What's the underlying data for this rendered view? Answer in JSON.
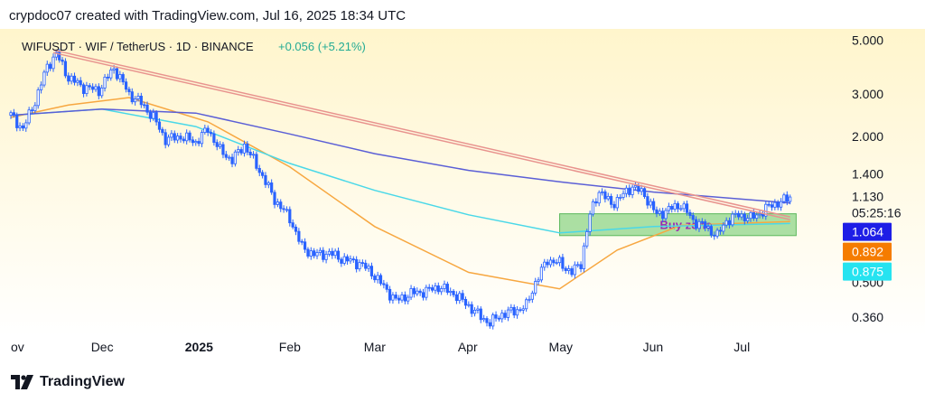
{
  "header": {
    "text": "crypdoc07 created with TradingView.com, Jul 16, 2025 18:34 UTC"
  },
  "footer": {
    "brand": "TradingView"
  },
  "chart_data": {
    "type": "candlestick",
    "symbol": "WIFUSDT · WIF / TetherUS · 1D · BINANCE",
    "change": "+0.056 (+5.21%)",
    "y_scale": "log",
    "ylim": [
      0.3,
      5.2
    ],
    "y_ticks": [
      "5.000",
      "3.000",
      "2.000",
      "1.400",
      "0.500",
      "0.360"
    ],
    "x_ticks": [
      "ov",
      "Dec",
      "2025",
      "Feb",
      "Mar",
      "Apr",
      "May",
      "Jun",
      "Jul"
    ],
    "x_dates": [
      "2024-11-01",
      "2024-12-01",
      "2025-01-01",
      "2025-02-01",
      "2025-03-01",
      "2025-04-01",
      "2025-05-01",
      "2025-06-01",
      "2025-07-01"
    ],
    "x_range": [
      "2024-11-01",
      "2025-07-31"
    ],
    "price_path": [
      [
        "2024-11-01",
        2.45
      ],
      [
        "2024-11-05",
        2.15
      ],
      [
        "2024-11-09",
        2.8
      ],
      [
        "2024-11-13",
        3.9
      ],
      [
        "2024-11-16",
        4.4
      ],
      [
        "2024-11-20",
        3.5
      ],
      [
        "2024-11-25",
        3.2
      ],
      [
        "2024-11-30",
        3.1
      ],
      [
        "2024-12-05",
        3.85
      ],
      [
        "2024-12-10",
        3.0
      ],
      [
        "2024-12-14",
        2.75
      ],
      [
        "2024-12-18",
        2.4
      ],
      [
        "2024-12-22",
        1.95
      ],
      [
        "2024-12-27",
        2.0
      ],
      [
        "2025-01-01",
        1.9
      ],
      [
        "2025-01-05",
        2.15
      ],
      [
        "2025-01-09",
        1.75
      ],
      [
        "2025-01-13",
        1.6
      ],
      [
        "2025-01-17",
        1.85
      ],
      [
        "2025-01-22",
        1.45
      ],
      [
        "2025-01-27",
        1.1
      ],
      [
        "2025-02-01",
        0.92
      ],
      [
        "2025-02-05",
        0.7
      ],
      [
        "2025-02-09",
        0.65
      ],
      [
        "2025-02-14",
        0.66
      ],
      [
        "2025-02-19",
        0.62
      ],
      [
        "2025-02-24",
        0.6
      ],
      [
        "2025-02-28",
        0.55
      ],
      [
        "2025-03-04",
        0.48
      ],
      [
        "2025-03-08",
        0.42
      ],
      [
        "2025-03-13",
        0.45
      ],
      [
        "2025-03-18",
        0.46
      ],
      [
        "2025-03-22",
        0.48
      ],
      [
        "2025-03-27",
        0.45
      ],
      [
        "2025-04-01",
        0.4
      ],
      [
        "2025-04-05",
        0.36
      ],
      [
        "2025-04-08",
        0.34
      ],
      [
        "2025-04-12",
        0.37
      ],
      [
        "2025-04-16",
        0.38
      ],
      [
        "2025-04-20",
        0.4
      ],
      [
        "2025-04-23",
        0.5
      ],
      [
        "2025-04-27",
        0.62
      ],
      [
        "2025-05-01",
        0.6
      ],
      [
        "2025-05-05",
        0.55
      ],
      [
        "2025-05-08",
        0.6
      ],
      [
        "2025-05-11",
        0.95
      ],
      [
        "2025-05-14",
        1.2
      ],
      [
        "2025-05-18",
        1.05
      ],
      [
        "2025-05-22",
        1.15
      ],
      [
        "2025-05-25",
        1.25
      ],
      [
        "2025-05-29",
        1.15
      ],
      [
        "2025-06-02",
        0.95
      ],
      [
        "2025-06-06",
        1.0
      ],
      [
        "2025-06-10",
        1.05
      ],
      [
        "2025-06-14",
        0.9
      ],
      [
        "2025-06-18",
        0.85
      ],
      [
        "2025-06-22",
        0.78
      ],
      [
        "2025-06-25",
        0.9
      ],
      [
        "2025-06-29",
        0.95
      ],
      [
        "2025-07-03",
        0.92
      ],
      [
        "2025-07-07",
        0.98
      ],
      [
        "2025-07-10",
        1.05
      ],
      [
        "2025-07-13",
        1.07
      ],
      [
        "2025-07-16",
        1.13
      ]
    ],
    "ma_lines": [
      {
        "color": "#f7a740",
        "points": [
          [
            "2024-11-01",
            2.4
          ],
          [
            "2024-11-20",
            2.7
          ],
          [
            "2024-12-10",
            2.9
          ],
          [
            "2025-01-05",
            2.3
          ],
          [
            "2025-02-01",
            1.5
          ],
          [
            "2025-03-01",
            0.85
          ],
          [
            "2025-04-01",
            0.55
          ],
          [
            "2025-05-01",
            0.47
          ],
          [
            "2025-05-20",
            0.68
          ],
          [
            "2025-06-10",
            0.86
          ],
          [
            "2025-07-16",
            0.892
          ]
        ]
      },
      {
        "color": "#4ad8e8",
        "points": [
          [
            "2024-11-01",
            2.45
          ],
          [
            "2024-12-01",
            2.6
          ],
          [
            "2025-01-01",
            2.2
          ],
          [
            "2025-02-01",
            1.55
          ],
          [
            "2025-03-01",
            1.2
          ],
          [
            "2025-04-01",
            0.95
          ],
          [
            "2025-05-01",
            0.8
          ],
          [
            "2025-06-01",
            0.85
          ],
          [
            "2025-07-16",
            0.875
          ]
        ]
      },
      {
        "color": "#5b5fd6",
        "points": [
          [
            "2024-11-01",
            2.45
          ],
          [
            "2024-12-01",
            2.6
          ],
          [
            "2025-01-01",
            2.5
          ],
          [
            "2025-02-01",
            2.05
          ],
          [
            "2025-03-01",
            1.7
          ],
          [
            "2025-04-01",
            1.45
          ],
          [
            "2025-05-01",
            1.3
          ],
          [
            "2025-06-01",
            1.18
          ],
          [
            "2025-07-16",
            1.064
          ]
        ]
      }
    ],
    "trendline": {
      "color": "#e8938e",
      "points": [
        [
          "2024-11-15",
          4.5
        ],
        [
          "2025-07-16",
          0.92
        ]
      ]
    },
    "buy_zone": {
      "label": "Buy zone",
      "from": "2025-05-01",
      "to": "2025-07-18",
      "low": 0.78,
      "high": 0.96,
      "color": "#8fd68a",
      "label_color": "#9c27b0"
    },
    "price_labels": {
      "last": "1.130",
      "countdown": "05:25:16"
    },
    "badges": [
      {
        "value": "1.064",
        "color": "#1e1ee6"
      },
      {
        "value": "0.892",
        "color": "#f57c00"
      },
      {
        "value": "0.875",
        "color": "#26e3f0"
      }
    ],
    "candle_colors": {
      "up": "#2962ff",
      "down": "#2962ff"
    },
    "background": {
      "top": "#fff5cc",
      "bottom": "#ffffff"
    }
  }
}
